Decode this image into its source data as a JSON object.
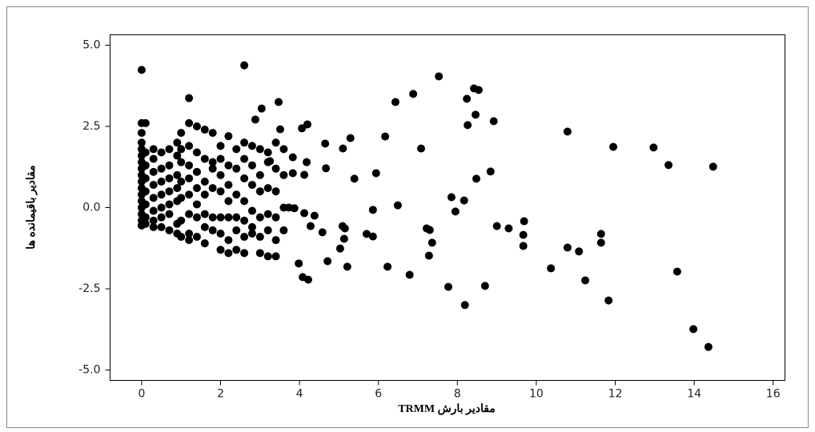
{
  "chart_data": {
    "type": "scatter",
    "x_label": "مقادیر بارش TRMM",
    "y_label": "مقادیر باقیمانده ها",
    "color": "#000000",
    "xlim": [
      -0.8,
      16.3
    ],
    "ylim": [
      -5.32,
      5.32
    ],
    "xticks": [
      0,
      2,
      4,
      6,
      8,
      10,
      12,
      14,
      16
    ],
    "yticks": [
      {
        "value": 5,
        "label": "5.0"
      },
      2.5,
      {
        "value": 0,
        "label": "0.0"
      },
      -2.5,
      {
        "value": -5,
        "label": "-5.0"
      }
    ],
    "x": [
      0,
      2.6,
      7.53,
      8.42,
      8.54,
      8.24,
      6.43,
      6.88,
      1.2,
      3.04,
      3.47,
      2.88,
      8.46,
      8.92,
      8.26,
      4.2,
      4.06,
      3.51,
      5.29,
      6.17,
      10.79,
      11.95,
      12.97,
      13.35,
      14.48,
      7.08,
      4.65,
      5.1,
      4.67,
      5.39,
      5.94,
      8.48,
      8.84,
      7.85,
      8.17,
      7.95,
      5.86,
      6.49,
      7.22,
      7.3,
      9.0,
      9.3,
      9.69,
      9.67,
      9.67,
      5.7,
      5.86,
      5.09,
      5.15,
      5.13,
      5.03,
      7.36,
      7.28,
      10.79,
      11.08,
      11.64,
      11.64,
      10.37,
      6.23,
      5.21,
      6.79,
      4.71,
      3.98,
      4.08,
      4.22,
      11.24,
      13.57,
      7.77,
      8.7,
      8.19,
      11.83,
      13.98,
      14.36,
      4.38,
      4.28,
      4.58,
      4.12,
      3.73,
      3.87,
      3.83,
      4.18,
      3.83,
      4.12,
      3.25,
      0,
      0,
      0,
      0,
      0,
      0,
      0,
      0,
      0,
      0,
      0,
      0,
      0,
      0,
      0,
      0,
      0.1,
      0.1,
      0.1,
      0.1,
      0.1,
      0.1,
      0.1,
      0.1,
      0.3,
      0.3,
      0.3,
      0.3,
      0.3,
      0.3,
      0.3,
      0.3,
      0.5,
      0.5,
      0.5,
      0.5,
      0.5,
      0.5,
      0.5,
      0.7,
      0.7,
      0.7,
      0.7,
      0.7,
      0.7,
      0.7,
      0.9,
      0.9,
      0.9,
      0.9,
      0.9,
      0.9,
      0.9,
      1.0,
      1.0,
      1.0,
      1.0,
      1.0,
      1.0,
      1.0,
      1.2,
      1.2,
      1.2,
      1.2,
      1.2,
      1.2,
      1.2,
      1.2,
      1.4,
      1.4,
      1.4,
      1.4,
      1.4,
      1.4,
      1.4,
      1.6,
      1.6,
      1.6,
      1.6,
      1.6,
      1.6,
      1.6,
      1.8,
      1.8,
      1.8,
      1.8,
      1.8,
      1.8,
      2.0,
      2.0,
      2.0,
      2.0,
      2.0,
      2.0,
      2.0,
      2.2,
      2.2,
      2.2,
      2.2,
      2.2,
      2.2,
      2.2,
      2.4,
      2.4,
      2.4,
      2.4,
      2.4,
      2.4,
      2.6,
      2.6,
      2.6,
      2.6,
      2.6,
      2.6,
      2.6,
      2.8,
      2.8,
      2.8,
      2.8,
      2.8,
      2.8,
      3.0,
      3.0,
      3.0,
      3.0,
      3.0,
      3.0,
      3.2,
      3.2,
      3.2,
      3.2,
      3.2,
      3.2,
      3.4,
      3.4,
      3.4,
      3.4,
      3.4,
      3.4,
      3.6,
      3.6,
      3.6,
      3.6
    ],
    "values": [
      4.24,
      4.38,
      4.04,
      3.67,
      3.62,
      3.35,
      3.25,
      3.5,
      3.37,
      3.05,
      3.25,
      2.71,
      2.86,
      2.66,
      2.54,
      2.56,
      2.44,
      2.41,
      2.14,
      2.19,
      2.34,
      1.87,
      1.85,
      1.31,
      1.26,
      1.82,
      1.97,
      1.82,
      1.21,
      0.89,
      1.06,
      0.89,
      1.11,
      0.32,
      0.22,
      -0.12,
      -0.07,
      0.07,
      -0.64,
      -0.69,
      -0.57,
      -0.64,
      -0.42,
      -0.84,
      -1.18,
      -0.81,
      -0.89,
      -0.57,
      -0.64,
      -0.96,
      -1.26,
      -1.08,
      -1.48,
      -1.23,
      -1.35,
      -0.81,
      -1.08,
      -1.87,
      -1.82,
      -1.82,
      -2.07,
      -1.65,
      -1.72,
      -2.14,
      -2.22,
      -2.24,
      -1.97,
      -2.44,
      -2.41,
      -3.0,
      -2.86,
      -3.74,
      -4.29,
      -0.25,
      -0.57,
      -0.76,
      -0.17,
      0,
      -0.02,
      1.55,
      1.4,
      1.06,
      1.01,
      1.43,
      2.6,
      2.3,
      2.0,
      1.8,
      1.6,
      1.4,
      1.2,
      1.0,
      0.8,
      0.6,
      0.4,
      0.2,
      0,
      -0.2,
      -0.4,
      -0.55,
      2.6,
      1.7,
      1.3,
      0.9,
      0.5,
      0.1,
      -0.3,
      -0.5,
      1.8,
      1.5,
      1.1,
      0.7,
      0.3,
      -0.1,
      -0.4,
      -0.6,
      1.7,
      1.2,
      0.8,
      0.4,
      0.0,
      -0.3,
      -0.6,
      1.8,
      1.3,
      0.9,
      0.5,
      0.1,
      -0.2,
      -0.7,
      2.0,
      1.6,
      1.0,
      0.6,
      0.2,
      -0.5,
      -0.8,
      2.3,
      1.8,
      1.4,
      0.8,
      0.3,
      -0.4,
      -0.9,
      2.6,
      1.9,
      1.3,
      0.9,
      0.4,
      -0.2,
      -0.8,
      -1.0,
      2.5,
      1.7,
      1.1,
      0.6,
      0.1,
      -0.3,
      -0.9,
      2.4,
      1.5,
      0.8,
      0.4,
      -0.2,
      -0.6,
      -1.1,
      2.3,
      1.4,
      1.2,
      0.6,
      -0.3,
      -0.7,
      1.9,
      1.5,
      1.0,
      0.5,
      -0.3,
      -0.8,
      -1.3,
      2.2,
      1.3,
      0.7,
      0.2,
      -0.3,
      -1.0,
      -1.4,
      1.8,
      1.2,
      0.4,
      -0.3,
      -0.7,
      -1.3,
      2.0,
      1.5,
      0.9,
      0.2,
      -0.4,
      -0.9,
      -1.4,
      1.9,
      1.3,
      0.7,
      -0.1,
      -0.6,
      -0.8,
      1.8,
      1.0,
      0.5,
      -0.3,
      -0.9,
      -1.4,
      1.7,
      1.4,
      0.6,
      -0.2,
      -0.7,
      -1.5,
      2.0,
      1.2,
      0.5,
      -0.3,
      -1.0,
      -1.5,
      1.8,
      1.0,
      0.0,
      -0.7
    ]
  }
}
